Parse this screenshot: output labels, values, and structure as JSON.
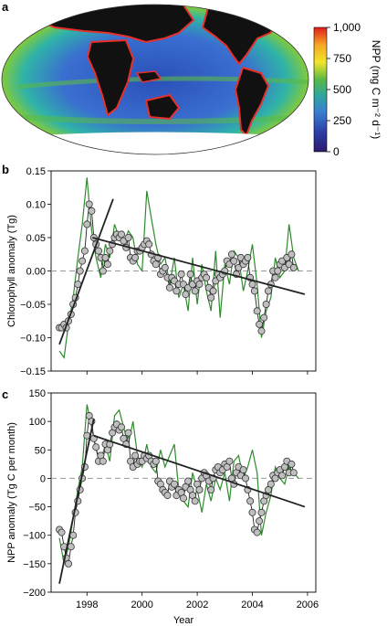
{
  "panel_a": {
    "letter": "a",
    "colorbar": {
      "label": "NPP (mg C m⁻² d⁻¹)",
      "ticks": [
        "1,000",
        "750",
        "500",
        "250",
        "0"
      ],
      "tick_values": [
        1000,
        750,
        500,
        250,
        0
      ],
      "colors": [
        "#e01d1d",
        "#f5a623",
        "#f2e52b",
        "#58b947",
        "#2fa6a0",
        "#3a7fd1",
        "#2b3fa8",
        "#2a1b6b"
      ]
    },
    "map_colors": {
      "ocean_low": "#2b4fb8",
      "ocean_mid": "#2fb3a8",
      "ocean_high": "#7bc943",
      "coast": "#e8302a",
      "land": "#111111",
      "ice": "#ffffff"
    }
  },
  "chart_data": [
    {
      "panel": "b",
      "type": "line",
      "title": "",
      "xlabel": "",
      "ylabel": "Chlorophyll anomaly (Tg)",
      "xlim": [
        1996.7,
        2006.3
      ],
      "ylim": [
        -0.15,
        0.15
      ],
      "yticks": [
        -0.15,
        -0.1,
        -0.05,
        0.0,
        0.05,
        0.1,
        0.15
      ],
      "ytick_labels": [
        "−0.15",
        "−0.10",
        "−0.05",
        "0.00",
        "0.05",
        "0.10",
        "0.15"
      ],
      "xticks": [
        1998,
        2000,
        2002,
        2004,
        2006
      ],
      "series": [
        {
          "color": "#2e8b2e",
          "style": "line",
          "x": [
            1997.0,
            1997.17,
            1997.33,
            1997.5,
            1997.67,
            1997.83,
            1998.0,
            1998.17,
            1998.33,
            1998.5,
            1998.67,
            1998.83,
            1999.0,
            1999.17,
            1999.33,
            1999.5,
            1999.67,
            1999.83,
            2000.0,
            2000.17,
            2000.33,
            2000.5,
            2000.67,
            2000.83,
            2001.0,
            2001.17,
            2001.33,
            2001.5,
            2001.67,
            2001.83,
            2002.0,
            2002.17,
            2002.33,
            2002.5,
            2002.67,
            2002.83,
            2003.0,
            2003.17,
            2003.33,
            2003.5,
            2003.67,
            2003.83,
            2004.0,
            2004.17,
            2004.33,
            2004.5,
            2004.67,
            2004.83,
            2005.0,
            2005.17,
            2005.33,
            2005.5,
            2005.67
          ],
          "y": [
            -0.12,
            -0.13,
            -0.08,
            -0.04,
            0.02,
            0.07,
            0.14,
            0.06,
            0.02,
            -0.01,
            0.04,
            0.02,
            0.07,
            0.05,
            0.04,
            0.06,
            0.05,
            0.01,
            0.0,
            0.12,
            0.08,
            0.04,
            0.01,
            0.02,
            -0.02,
            0.02,
            -0.04,
            -0.02,
            -0.06,
            0.02,
            -0.05,
            0.01,
            -0.03,
            -0.06,
            0.03,
            -0.07,
            0.01,
            -0.02,
            0.03,
            0.02,
            -0.03,
            0.0,
            0.04,
            -0.02,
            -0.1,
            -0.06,
            -0.04,
            0.02,
            -0.01,
            0.0,
            0.07,
            0.02,
            0.0
          ]
        },
        {
          "color": "#bfbfbf",
          "style": "markers",
          "x": [
            1997.0,
            1997.08,
            1997.17,
            1997.25,
            1997.33,
            1997.42,
            1997.5,
            1997.58,
            1997.67,
            1997.75,
            1997.83,
            1997.92,
            1998.0,
            1998.08,
            1998.17,
            1998.25,
            1998.33,
            1998.42,
            1998.5,
            1998.58,
            1998.67,
            1998.75,
            1998.83,
            1998.92,
            1999.0,
            1999.08,
            1999.17,
            1999.25,
            1999.33,
            1999.42,
            1999.5,
            1999.58,
            1999.67,
            1999.75,
            1999.83,
            1999.92,
            2000.0,
            2000.08,
            2000.17,
            2000.25,
            2000.33,
            2000.42,
            2000.5,
            2000.58,
            2000.67,
            2000.75,
            2000.83,
            2000.92,
            2001.0,
            2001.08,
            2001.17,
            2001.25,
            2001.33,
            2001.42,
            2001.5,
            2001.58,
            2001.67,
            2001.75,
            2001.83,
            2001.92,
            2002.0,
            2002.08,
            2002.17,
            2002.25,
            2002.33,
            2002.42,
            2002.5,
            2002.58,
            2002.67,
            2002.75,
            2002.83,
            2002.92,
            2003.0,
            2003.08,
            2003.17,
            2003.25,
            2003.33,
            2003.42,
            2003.5,
            2003.58,
            2003.67,
            2003.75,
            2003.83,
            2003.92,
            2004.0,
            2004.08,
            2004.17,
            2004.25,
            2004.33,
            2004.42,
            2004.5,
            2004.58,
            2004.67,
            2004.75,
            2004.83,
            2004.92,
            2005.0,
            2005.08,
            2005.17,
            2005.25,
            2005.33,
            2005.42,
            2005.5
          ],
          "y": [
            -0.085,
            -0.085,
            -0.08,
            -0.085,
            -0.075,
            -0.065,
            -0.05,
            -0.04,
            -0.02,
            0.0,
            0.015,
            0.03,
            0.07,
            0.1,
            0.09,
            0.05,
            0.04,
            0.03,
            0.02,
            0.0,
            0.02,
            0.01,
            0.03,
            0.04,
            0.05,
            0.055,
            0.05,
            0.055,
            0.045,
            0.035,
            0.05,
            0.02,
            0.015,
            0.02,
            0.03,
            0.03,
            0.035,
            0.04,
            0.045,
            0.04,
            0.025,
            0.015,
            0.01,
            0.02,
            -0.005,
            0.0,
            0.005,
            -0.01,
            -0.025,
            -0.01,
            -0.015,
            -0.03,
            -0.02,
            -0.005,
            -0.02,
            -0.035,
            -0.025,
            -0.005,
            -0.02,
            -0.03,
            -0.015,
            -0.02,
            -0.01,
            -0.005,
            -0.01,
            -0.025,
            -0.04,
            -0.03,
            -0.015,
            -0.005,
            -0.01,
            -0.005,
            0.0,
            0.015,
            0.01,
            0.025,
            0.015,
            -0.005,
            0.005,
            0.02,
            0.01,
            0.015,
            0.02,
            -0.01,
            -0.02,
            -0.03,
            -0.06,
            -0.08,
            -0.09,
            -0.07,
            -0.05,
            -0.03,
            -0.02,
            0.0,
            -0.01,
            0.0,
            0.01,
            0.015,
            0.005,
            0.02,
            0.01,
            0.025,
            0.005
          ]
        },
        {
          "color": "#222222",
          "style": "trend",
          "segments": [
            {
              "x": [
                1997.0,
                1998.95
              ],
              "y": [
                -0.11,
                0.108
              ]
            },
            {
              "x": [
                1998.2,
                2005.9
              ],
              "y": [
                0.05,
                -0.035
              ]
            }
          ]
        }
      ]
    },
    {
      "panel": "c",
      "type": "line",
      "title": "",
      "xlabel": "Year",
      "ylabel": "NPP anomaly (Tg C per month)",
      "xlim": [
        1996.7,
        2006.3
      ],
      "ylim": [
        -200,
        150
      ],
      "yticks": [
        -200,
        -150,
        -100,
        -50,
        0,
        50,
        100,
        150
      ],
      "ytick_labels": [
        "−200",
        "−150",
        "−100",
        "−50",
        "0",
        "50",
        "100",
        "150"
      ],
      "xticks": [
        1998,
        2000,
        2002,
        2004,
        2006
      ],
      "xtick_labels": [
        "1998",
        "2000",
        "2002",
        "2004",
        "2006"
      ],
      "series": [
        {
          "color": "#2e8b2e",
          "style": "line",
          "x": [
            1997.0,
            1997.17,
            1997.33,
            1997.5,
            1997.67,
            1997.83,
            1998.0,
            1998.17,
            1998.33,
            1998.5,
            1998.67,
            1998.83,
            1999.0,
            1999.17,
            1999.33,
            1999.5,
            1999.67,
            1999.83,
            2000.0,
            2000.17,
            2000.33,
            2000.5,
            2000.67,
            2000.83,
            2001.0,
            2001.17,
            2001.33,
            2001.5,
            2001.67,
            2001.83,
            2002.0,
            2002.17,
            2002.33,
            2002.5,
            2002.67,
            2002.83,
            2003.0,
            2003.17,
            2003.33,
            2003.5,
            2003.67,
            2003.83,
            2004.0,
            2004.17,
            2004.33,
            2004.5,
            2004.67,
            2004.83,
            2005.0,
            2005.17,
            2005.33,
            2005.5,
            2005.67
          ],
          "y": [
            -105,
            -150,
            -120,
            -70,
            -20,
            20,
            130,
            90,
            50,
            30,
            60,
            30,
            110,
            120,
            90,
            60,
            100,
            40,
            20,
            60,
            20,
            10,
            50,
            20,
            40,
            60,
            -20,
            -40,
            -50,
            10,
            -20,
            -60,
            -10,
            -40,
            0,
            -20,
            10,
            -40,
            30,
            40,
            0,
            20,
            50,
            10,
            -100,
            -60,
            -30,
            20,
            0,
            -10,
            20,
            10,
            0
          ]
        },
        {
          "color": "#bfbfbf",
          "style": "markers",
          "x": [
            1997.0,
            1997.08,
            1997.17,
            1997.25,
            1997.33,
            1997.42,
            1997.5,
            1997.58,
            1997.67,
            1997.75,
            1997.83,
            1997.92,
            1998.0,
            1998.08,
            1998.17,
            1998.25,
            1998.33,
            1998.42,
            1998.5,
            1998.58,
            1998.67,
            1998.75,
            1998.83,
            1998.92,
            1999.0,
            1999.08,
            1999.17,
            1999.25,
            1999.33,
            1999.42,
            1999.5,
            1999.58,
            1999.67,
            1999.75,
            1999.83,
            1999.92,
            2000.0,
            2000.08,
            2000.17,
            2000.25,
            2000.33,
            2000.42,
            2000.5,
            2000.58,
            2000.67,
            2000.75,
            2000.83,
            2000.92,
            2001.0,
            2001.08,
            2001.17,
            2001.25,
            2001.33,
            2001.42,
            2001.5,
            2001.58,
            2001.67,
            2001.75,
            2001.83,
            2001.92,
            2002.0,
            2002.08,
            2002.17,
            2002.25,
            2002.33,
            2002.42,
            2002.5,
            2002.58,
            2002.67,
            2002.75,
            2002.83,
            2002.92,
            2003.0,
            2003.08,
            2003.17,
            2003.25,
            2003.33,
            2003.42,
            2003.5,
            2003.58,
            2003.67,
            2003.75,
            2003.83,
            2003.92,
            2004.0,
            2004.08,
            2004.17,
            2004.25,
            2004.33,
            2004.42,
            2004.5,
            2004.58,
            2004.67,
            2004.75,
            2004.83,
            2004.92,
            2005.0,
            2005.08,
            2005.17,
            2005.25,
            2005.33,
            2005.42,
            2005.5
          ],
          "y": [
            -90,
            -95,
            -120,
            -140,
            -150,
            -120,
            -100,
            -60,
            -40,
            -20,
            0,
            20,
            75,
            110,
            100,
            70,
            55,
            30,
            40,
            30,
            60,
            50,
            60,
            80,
            90,
            95,
            85,
            90,
            70,
            60,
            80,
            30,
            20,
            40,
            25,
            30,
            30,
            40,
            35,
            40,
            30,
            25,
            30,
            -5,
            -10,
            -20,
            -25,
            -30,
            -5,
            -15,
            -10,
            -30,
            -20,
            -25,
            -35,
            -15,
            -5,
            -20,
            -30,
            -40,
            -10,
            -20,
            0,
            10,
            5,
            -5,
            -20,
            0,
            15,
            20,
            10,
            15,
            25,
            20,
            30,
            0,
            -10,
            10,
            20,
            5,
            15,
            0,
            -20,
            -40,
            -60,
            -90,
            -95,
            -75,
            -60,
            -40,
            -30,
            -20,
            -10,
            5,
            0,
            10,
            15,
            5,
            20,
            30,
            10,
            25,
            10
          ]
        },
        {
          "color": "#222222",
          "style": "trend",
          "segments": [
            {
              "x": [
                1997.0,
                1998.25
              ],
              "y": [
                -185,
                105
              ]
            },
            {
              "x": [
                1998.25,
                2005.9
              ],
              "y": [
                75,
                -50
              ]
            }
          ]
        }
      ]
    }
  ]
}
